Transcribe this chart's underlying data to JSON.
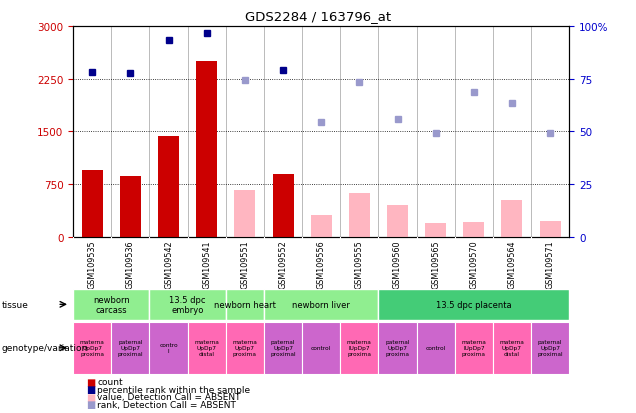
{
  "title": "GDS2284 / 163796_at",
  "samples": [
    "GSM109535",
    "GSM109536",
    "GSM109542",
    "GSM109541",
    "GSM109551",
    "GSM109552",
    "GSM109556",
    "GSM109555",
    "GSM109560",
    "GSM109565",
    "GSM109570",
    "GSM109564",
    "GSM109571"
  ],
  "count_values": [
    950,
    870,
    1440,
    2500,
    null,
    900,
    null,
    null,
    null,
    null,
    null,
    null,
    null
  ],
  "count_absent": [
    null,
    null,
    null,
    null,
    670,
    null,
    320,
    630,
    450,
    200,
    220,
    530,
    230
  ],
  "rank_values": [
    2350,
    2330,
    2800,
    2900,
    null,
    2380,
    null,
    null,
    null,
    null,
    null,
    null,
    null
  ],
  "rank_absent": [
    null,
    null,
    null,
    null,
    2230,
    null,
    1640,
    2200,
    1680,
    1480,
    2060,
    1900,
    1480
  ],
  "ylim_left": [
    0,
    3000
  ],
  "ylim_right": [
    0,
    100
  ],
  "yticks_left": [
    0,
    750,
    1500,
    2250,
    3000
  ],
  "yticks_right": [
    0,
    25,
    50,
    75,
    100
  ],
  "tissue_spans": [
    {
      "start": 0,
      "end": 1,
      "label": "newborn\ncarcass",
      "color": "#90EE90"
    },
    {
      "start": 2,
      "end": 3,
      "label": "13.5 dpc\nembryo",
      "color": "#90EE90"
    },
    {
      "start": 4,
      "end": 4,
      "label": "newborn heart",
      "color": "#90EE90"
    },
    {
      "start": 5,
      "end": 7,
      "label": "newborn liver",
      "color": "#90EE90"
    },
    {
      "start": 8,
      "end": 12,
      "label": "13.5 dpc placenta",
      "color": "#44CC77"
    }
  ],
  "geno_data": [
    {
      "label": "materna\nUpDp7\nproxima",
      "color": "#FF69B4"
    },
    {
      "label": "paternal\nUpDp7\nproximal",
      "color": "#CC66CC"
    },
    {
      "label": "contro\nl",
      "color": "#CC66CC"
    },
    {
      "label": "materna\nUpDp7\ndistal",
      "color": "#FF69B4"
    },
    {
      "label": "materna\nUpDp7\nproxima",
      "color": "#FF69B4"
    },
    {
      "label": "paternal\nUpDp7\nproximal",
      "color": "#CC66CC"
    },
    {
      "label": "control",
      "color": "#CC66CC"
    },
    {
      "label": "materna\nlUpDp7\nproxima",
      "color": "#FF69B4"
    },
    {
      "label": "paternal\nUpDp7\nproxima",
      "color": "#CC66CC"
    },
    {
      "label": "control",
      "color": "#CC66CC"
    },
    {
      "label": "materna\nlUpDp7\nproxima",
      "color": "#FF69B4"
    },
    {
      "label": "materna\nUpDp7\ndistal",
      "color": "#FF69B4"
    },
    {
      "label": "paternal\nUpDp7\nproximal",
      "color": "#CC66CC"
    }
  ],
  "bar_color_red": "#CC0000",
  "bar_color_pink": "#FFB6C1",
  "dot_color_blue": "#00008B",
  "dot_color_lightblue": "#9999CC",
  "left_label_color": "#CC0000",
  "right_label_color": "#0000CC",
  "sample_bg_color": "#C8C8C8"
}
